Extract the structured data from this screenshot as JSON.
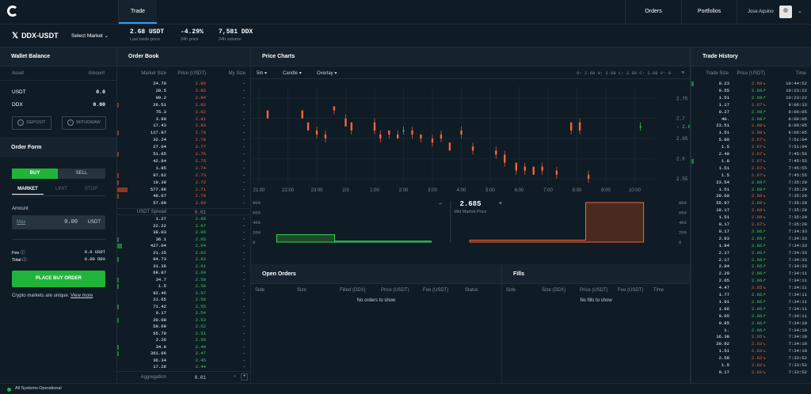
{
  "nav": {
    "trade": "Trade",
    "orders": "Orders",
    "portfolios": "Portfolios",
    "user_name": "Jose Aquino"
  },
  "ticker": {
    "pair": "DDX-USDT",
    "select_market": "Select Market",
    "last_price": "2.68 USDT",
    "last_price_label": "Last trade price",
    "change": "-4.29%",
    "change_label": "24h price",
    "volume": "7,581 DDX",
    "volume_label": "24h volume"
  },
  "wallet": {
    "title": "Wallet Balance",
    "asset_label": "Asset",
    "amount_label": "Amount",
    "rows": [
      {
        "asset": "USDT",
        "amount": "0.0"
      },
      {
        "asset": "DDX",
        "amount": "0.00"
      }
    ],
    "deposit": "DEPOSIT",
    "withdraw": "WITHDRAW"
  },
  "order_form": {
    "title": "Order Form",
    "buy": "BUY",
    "sell": "SELL",
    "market": "MARKET",
    "limit": "LIMIT",
    "stop": "STOP",
    "amount_label": "Amount",
    "max": "Max",
    "amount_value": "0.00",
    "amount_unit": "USDT",
    "fee_label": "Fee",
    "fee_value": "0.0 USDT",
    "total_label": "Total",
    "total_value": "0.00 DDX",
    "place": "PLACE BUY ORDER",
    "note": "Crypto markets are unique.",
    "view_more": "View more"
  },
  "orderbook": {
    "title": "Order Book",
    "col_size": "Market Size",
    "col_price": "Price (USDT)",
    "col_my": "My Size",
    "asks": [
      [
        "24.76",
        "2.86"
      ],
      [
        "28.5",
        "2.85"
      ],
      [
        "99.2",
        "2.84"
      ],
      [
        "26.51",
        "2.83"
      ],
      [
        "75.3",
        "2.82"
      ],
      [
        "3.99",
        "2.81"
      ],
      [
        "17.43",
        "2.80"
      ],
      [
        "127.87",
        "2.79"
      ],
      [
        "32.24",
        "2.78"
      ],
      [
        "27.04",
        "2.77"
      ],
      [
        "51.65",
        "2.76"
      ],
      [
        "42.84",
        "2.75"
      ],
      [
        "1.85",
        "2.74"
      ],
      [
        "97.62",
        "2.73"
      ],
      [
        "19.39",
        "2.72"
      ],
      [
        "577.96",
        "2.71"
      ],
      [
        "48.67",
        "2.70"
      ],
      [
        "57.09",
        "2.69"
      ]
    ],
    "ask_bars": [
      0,
      0,
      0,
      2,
      0,
      0,
      0,
      2,
      0,
      0,
      2,
      0,
      0,
      2,
      2,
      13,
      2,
      0
    ],
    "spread_label": "USDT Spread",
    "spread_value": "0.01",
    "bids": [
      [
        "1.27",
        "2.68"
      ],
      [
        "22.22",
        "2.67"
      ],
      [
        "38.03",
        "2.66"
      ],
      [
        "36.1",
        "2.65"
      ],
      [
        "427.04",
        "2.64"
      ],
      [
        "21.15",
        "2.63"
      ],
      [
        "94.73",
        "2.62"
      ],
      [
        "31.36",
        "2.61"
      ],
      [
        "68.87",
        "2.60"
      ],
      [
        "34.7",
        "2.59"
      ],
      [
        "1.5",
        "2.58"
      ],
      [
        "92.46",
        "2.57"
      ],
      [
        "21.65",
        "2.56"
      ],
      [
        "71.42",
        "2.55"
      ],
      [
        "0.17",
        "2.54"
      ],
      [
        "20.08",
        "2.53"
      ],
      [
        "59.69",
        "2.52"
      ],
      [
        "55.79",
        "2.51"
      ],
      [
        "2.26",
        "2.50"
      ],
      [
        "34.8",
        "2.49"
      ],
      [
        "361.66",
        "2.47"
      ],
      [
        "36.34",
        "2.45"
      ],
      [
        "17.26",
        "2.44"
      ]
    ],
    "bid_bars": [
      0,
      0,
      0,
      2,
      6,
      0,
      2,
      0,
      0,
      2,
      2,
      0,
      0,
      2,
      0,
      2,
      0,
      0,
      0,
      2,
      2,
      0,
      0
    ],
    "my_size": "-",
    "agg_label": "Aggregation",
    "agg_value": "0.01"
  },
  "chart": {
    "title": "Price Charts",
    "interval": "5m",
    "style": "Candle",
    "overlay": "Overlay",
    "ohlc": "O: 2.68   H: 2.68   L: 2.68   C: 2.68   V:",
    "volume_value": "0",
    "mid_price": "2.685",
    "mid_label": "Mid Market Price"
  },
  "chart_data": [
    {
      "type": "candlestick",
      "x_ticks": [
        "21:00",
        "22:00",
        "23:00",
        "2/3",
        "1:00",
        "2:00",
        "3:00",
        "4:00",
        "5:00",
        "6:00",
        "7:00",
        "8:00",
        "9:00",
        "10:00"
      ],
      "y_ticks": [
        2.55,
        2.6,
        2.65,
        2.7,
        2.75
      ],
      "ylim": [
        2.54,
        2.78
      ],
      "last": 2.68,
      "candles": [
        [
          0.3,
          2.72,
          2.72,
          2.7,
          2.7
        ],
        [
          1.5,
          2.72,
          2.72,
          2.7,
          2.7
        ],
        [
          1.7,
          2.69,
          2.69,
          2.67,
          2.67
        ],
        [
          2.0,
          2.67,
          2.68,
          2.65,
          2.66
        ],
        [
          2.3,
          2.66,
          2.67,
          2.64,
          2.65
        ],
        [
          2.6,
          2.73,
          2.73,
          2.71,
          2.72
        ],
        [
          3.0,
          2.7,
          2.71,
          2.68,
          2.68
        ],
        [
          3.2,
          2.69,
          2.69,
          2.66,
          2.67
        ],
        [
          4.0,
          2.69,
          2.7,
          2.66,
          2.67
        ],
        [
          4.2,
          2.66,
          2.67,
          2.64,
          2.65
        ],
        [
          4.5,
          2.67,
          2.67,
          2.65,
          2.66
        ],
        [
          4.8,
          2.66,
          2.67,
          2.65,
          2.65
        ],
        [
          5.0,
          2.67,
          2.68,
          2.66,
          2.67
        ],
        [
          5.3,
          2.67,
          2.68,
          2.65,
          2.66
        ],
        [
          5.6,
          2.66,
          2.66,
          2.64,
          2.65
        ],
        [
          6.0,
          2.65,
          2.66,
          2.63,
          2.64
        ],
        [
          6.3,
          2.66,
          2.67,
          2.64,
          2.65
        ],
        [
          6.6,
          2.64,
          2.64,
          2.62,
          2.62
        ],
        [
          7.0,
          2.67,
          2.68,
          2.65,
          2.66
        ],
        [
          7.4,
          2.63,
          2.64,
          2.61,
          2.62
        ],
        [
          8.2,
          2.62,
          2.63,
          2.6,
          2.61
        ],
        [
          8.5,
          2.61,
          2.62,
          2.58,
          2.59
        ],
        [
          8.9,
          2.59,
          2.59,
          2.56,
          2.57
        ],
        [
          9.2,
          2.58,
          2.59,
          2.56,
          2.57
        ],
        [
          9.5,
          2.58,
          2.58,
          2.56,
          2.56
        ],
        [
          9.8,
          2.58,
          2.59,
          2.56,
          2.57
        ],
        [
          10.3,
          2.57,
          2.58,
          2.55,
          2.56
        ],
        [
          10.8,
          2.69,
          2.69,
          2.66,
          2.67
        ],
        [
          11.1,
          2.69,
          2.7,
          2.66,
          2.67
        ],
        [
          11.4,
          2.56,
          2.57,
          2.54,
          2.55
        ],
        [
          13.2,
          2.68,
          2.69,
          2.67,
          2.68
        ]
      ]
    },
    {
      "type": "area",
      "x_ticks": [
        2.64,
        2.65,
        2.66,
        2.67,
        2.68,
        2.69,
        2.7,
        2.71,
        2.72,
        2.73
      ],
      "y_ticks": [
        0,
        200,
        400,
        600,
        800
      ],
      "bids": [
        [
          2.64,
          150
        ],
        [
          2.655,
          150
        ],
        [
          2.655,
          20
        ],
        [
          2.68,
          20
        ]
      ],
      "asks": [
        [
          2.69,
          40
        ],
        [
          2.72,
          40
        ],
        [
          2.72,
          800
        ],
        [
          2.735,
          800
        ]
      ]
    }
  ],
  "open_orders": {
    "title": "Open Orders",
    "cols": [
      "Side",
      "Size",
      "Filled (DDX)",
      "Price (USDT)",
      "Fee (USDT)",
      "Status"
    ],
    "empty": "No orders to show"
  },
  "fills": {
    "title": "Fills",
    "cols": [
      "Side",
      "Size (DDX)",
      "Price (USDT)",
      "Fee (USDT)",
      "Time"
    ],
    "empty": "No fills to show"
  },
  "trades": {
    "title": "Trade History",
    "col_size": "Trade Size",
    "col_price": "Price (USDT)",
    "col_time": "Time",
    "rows": [
      [
        "0.23",
        "2.68",
        "d",
        "10:44:52"
      ],
      [
        "0.55",
        "2.69",
        "u",
        "10:23:22"
      ],
      [
        "1.51",
        "2.69",
        "u",
        "10:23:22"
      ],
      [
        "1.17",
        "2.67",
        "d",
        "9:06:33"
      ],
      [
        "0.27",
        "2.69",
        "u",
        "8:06:05"
      ],
      [
        "40.",
        "2.69",
        "u",
        "8:06:05"
      ],
      [
        "23.51",
        "2.68",
        "d",
        "8:06:05"
      ],
      [
        "1.51",
        "2.68",
        "d",
        "8:06:05"
      ],
      [
        "5.89",
        "2.67",
        "d",
        "7:51:04"
      ],
      [
        "1.5",
        "2.67",
        "d",
        "7:51:04"
      ],
      [
        "2.49",
        "2.67",
        "d",
        "7:45:56"
      ],
      [
        "1.8",
        "2.67",
        "d",
        "7:45:55"
      ],
      [
        "1.51",
        "2.67",
        "d",
        "7:45:55"
      ],
      [
        "1.5",
        "2.67",
        "d",
        "7:45:55"
      ],
      [
        "23.54",
        "2.69",
        "u",
        "7:35:29"
      ],
      [
        "1.51",
        "2.69",
        "u",
        "7:35:29"
      ],
      [
        "20.69",
        "2.68",
        "d",
        "7:35:29"
      ],
      [
        "55.97",
        "2.68",
        "d",
        "7:35:29"
      ],
      [
        "19.17",
        "2.68",
        "d",
        "7:35:29"
      ],
      [
        "1.51",
        "2.68",
        "d",
        "7:35:29"
      ],
      [
        "0.17",
        "2.67",
        "d",
        "7:35:29"
      ],
      [
        "0.17",
        "2.66",
        "u",
        "7:34:33"
      ],
      [
        "2.83",
        "2.66",
        "u",
        "7:34:33"
      ],
      [
        "1.94",
        "2.66",
        "u",
        "7:34:33"
      ],
      [
        "2.17",
        "2.66",
        "u",
        "7:34:33"
      ],
      [
        "2.17",
        "2.66",
        "u",
        "7:34:33"
      ],
      [
        "2.04",
        "2.66",
        "u",
        "7:34:33"
      ],
      [
        "2.29",
        "2.66",
        "u",
        "7:34:11"
      ],
      [
        "2.65",
        "2.66",
        "u",
        "7:34:11"
      ],
      [
        "4.47",
        "2.65",
        "d",
        "7:34:11"
      ],
      [
        "1.77",
        "2.66",
        "u",
        "7:34:11"
      ],
      [
        "1.91",
        "2.66",
        "u",
        "7:34:11"
      ],
      [
        "1.66",
        "2.66",
        "u",
        "7:34:11"
      ],
      [
        "0.65",
        "2.66",
        "u",
        "7:34:11"
      ],
      [
        "0.85",
        "2.66",
        "u",
        "7:34:10"
      ],
      [
        "1.",
        "2.66",
        "u",
        "7:34:10"
      ],
      [
        "16.38",
        "2.65",
        "d",
        "7:34:10"
      ],
      [
        "20.92",
        "2.63",
        "d",
        "7:34:10"
      ],
      [
        "1.51",
        "2.63",
        "d",
        "7:34:10"
      ],
      [
        "2.58",
        "2.62",
        "d",
        "7:33:52"
      ],
      [
        "1.5",
        "2.62",
        "d",
        "7:33:52"
      ],
      [
        "0.17",
        "2.61",
        "d",
        "7:33:52"
      ]
    ],
    "bars": [
      1,
      1,
      0,
      0,
      0,
      0,
      0,
      0,
      0,
      0,
      0,
      0,
      0,
      0,
      0,
      0,
      0,
      0,
      0,
      0,
      0,
      0,
      0,
      0,
      0,
      0,
      0,
      0,
      0,
      0,
      0,
      0,
      0,
      0,
      0,
      0,
      0,
      0,
      0,
      0,
      0,
      0
    ],
    "side_bars_left": [
      3,
      0,
      0,
      0,
      0,
      0,
      0,
      0,
      0,
      0,
      0,
      3,
      0,
      0,
      0,
      0,
      0,
      0,
      0,
      0,
      0,
      0,
      0,
      0,
      0,
      0,
      0,
      0,
      0,
      0,
      0,
      0,
      0,
      0,
      0,
      0,
      0,
      0,
      0,
      0,
      0,
      0
    ]
  },
  "status": {
    "text": "All Systems Operational"
  },
  "colors": {
    "green": "#3dd35a",
    "red": "#f0663a",
    "bg": "#0f1b25",
    "panel": "#16232e"
  }
}
